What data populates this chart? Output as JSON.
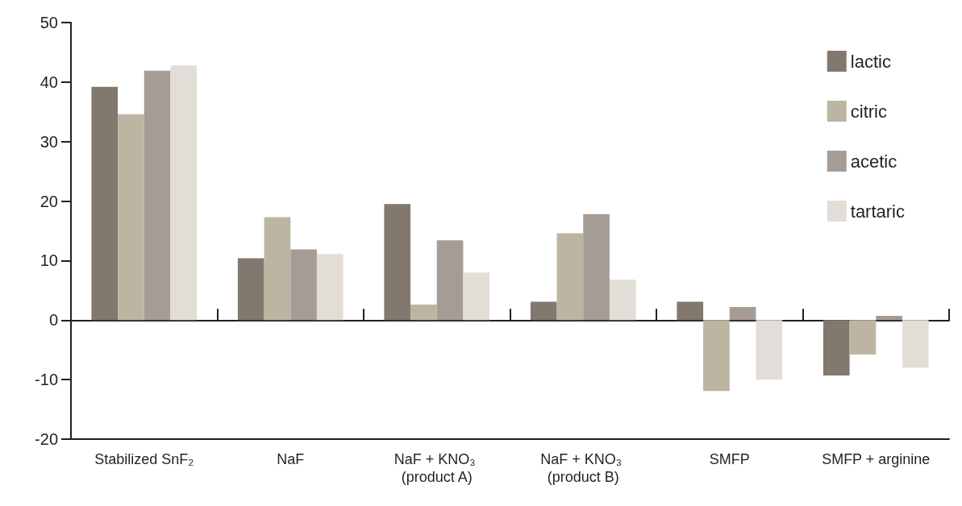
{
  "chart_data": {
    "type": "bar",
    "categories": [
      "Stabilized SnF₂",
      "NaF",
      "NaF + KNO₃ (product A)",
      "NaF + KNO₃ (product B)",
      "SMFP",
      "SMFP + arginine"
    ],
    "series": [
      {
        "name": "lactic",
        "color": "#82786d",
        "values": [
          39.2,
          10.4,
          19.5,
          3.1,
          3.1,
          -9.3
        ]
      },
      {
        "name": "citric",
        "color": "#bcb5a2",
        "values": [
          34.6,
          17.3,
          2.6,
          14.6,
          -11.9,
          -5.8
        ]
      },
      {
        "name": "acetic",
        "color": "#a59c95",
        "values": [
          41.9,
          11.9,
          13.4,
          17.8,
          2.2,
          0.7
        ]
      },
      {
        "name": "tartaric",
        "color": "#e2ded7",
        "values": [
          42.8,
          11.1,
          8.0,
          6.8,
          -10.0,
          -8.0
        ]
      }
    ],
    "ylim": [
      -20,
      50
    ],
    "yticks": [
      -20,
      -10,
      0,
      10,
      20,
      30,
      40,
      50
    ],
    "legend": "top right"
  }
}
